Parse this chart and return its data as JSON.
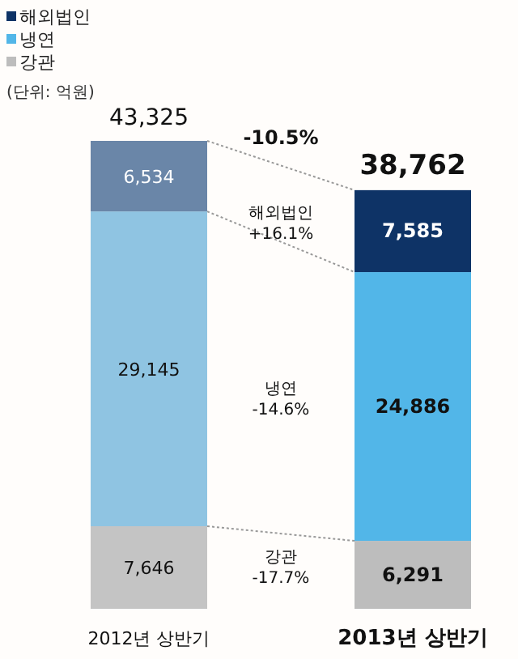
{
  "chart_data": {
    "type": "bar",
    "stacked": true,
    "legend": "top left",
    "categories": [
      "2012년 상반기",
      "2013년 상반기"
    ],
    "series": [
      {
        "name": "강관",
        "colors": [
          "#c4c4c4",
          "#bdbdbd"
        ],
        "values": [
          7646,
          6291
        ],
        "value_labels": [
          "7,646",
          "6,291"
        ]
      },
      {
        "name": "냉연",
        "colors": [
          "#8fc4e2",
          "#52b6e8"
        ],
        "values": [
          29145,
          24886
        ],
        "value_labels": [
          "29,145",
          "24,886"
        ]
      },
      {
        "name": "해외법인",
        "colors": [
          "#6a86a8",
          "#0e3366"
        ],
        "values": [
          6534,
          7585
        ],
        "value_labels": [
          "6,534",
          "7,585"
        ]
      }
    ],
    "totals": [
      "43,325",
      "38,762"
    ],
    "annotations": [
      "(단위: 억원)",
      "-10.5%",
      "해외법인 +16.1%",
      "냉연 -14.6%",
      "강관 -17.7%"
    ]
  }
}
